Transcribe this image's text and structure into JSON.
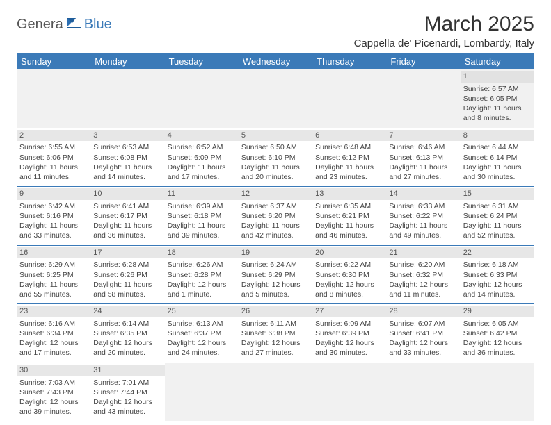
{
  "logo": {
    "part1": "Genera",
    "part2": "Blue"
  },
  "title": "March 2025",
  "location": "Cappella de' Picenardi, Lombardy, Italy",
  "colors": {
    "header_bg": "#3b7ab8",
    "header_text": "#ffffff",
    "border": "#3b7ab8",
    "daynum_bg": "#e7e7e7",
    "empty_bg": "#f1f1f1"
  },
  "weekdays": [
    "Sunday",
    "Monday",
    "Tuesday",
    "Wednesday",
    "Thursday",
    "Friday",
    "Saturday"
  ],
  "weeks": [
    [
      null,
      null,
      null,
      null,
      null,
      null,
      {
        "n": "1",
        "sr": "Sunrise: 6:57 AM",
        "ss": "Sunset: 6:05 PM",
        "d1": "Daylight: 11 hours",
        "d2": "and 8 minutes."
      }
    ],
    [
      {
        "n": "2",
        "sr": "Sunrise: 6:55 AM",
        "ss": "Sunset: 6:06 PM",
        "d1": "Daylight: 11 hours",
        "d2": "and 11 minutes."
      },
      {
        "n": "3",
        "sr": "Sunrise: 6:53 AM",
        "ss": "Sunset: 6:08 PM",
        "d1": "Daylight: 11 hours",
        "d2": "and 14 minutes."
      },
      {
        "n": "4",
        "sr": "Sunrise: 6:52 AM",
        "ss": "Sunset: 6:09 PM",
        "d1": "Daylight: 11 hours",
        "d2": "and 17 minutes."
      },
      {
        "n": "5",
        "sr": "Sunrise: 6:50 AM",
        "ss": "Sunset: 6:10 PM",
        "d1": "Daylight: 11 hours",
        "d2": "and 20 minutes."
      },
      {
        "n": "6",
        "sr": "Sunrise: 6:48 AM",
        "ss": "Sunset: 6:12 PM",
        "d1": "Daylight: 11 hours",
        "d2": "and 23 minutes."
      },
      {
        "n": "7",
        "sr": "Sunrise: 6:46 AM",
        "ss": "Sunset: 6:13 PM",
        "d1": "Daylight: 11 hours",
        "d2": "and 27 minutes."
      },
      {
        "n": "8",
        "sr": "Sunrise: 6:44 AM",
        "ss": "Sunset: 6:14 PM",
        "d1": "Daylight: 11 hours",
        "d2": "and 30 minutes."
      }
    ],
    [
      {
        "n": "9",
        "sr": "Sunrise: 6:42 AM",
        "ss": "Sunset: 6:16 PM",
        "d1": "Daylight: 11 hours",
        "d2": "and 33 minutes."
      },
      {
        "n": "10",
        "sr": "Sunrise: 6:41 AM",
        "ss": "Sunset: 6:17 PM",
        "d1": "Daylight: 11 hours",
        "d2": "and 36 minutes."
      },
      {
        "n": "11",
        "sr": "Sunrise: 6:39 AM",
        "ss": "Sunset: 6:18 PM",
        "d1": "Daylight: 11 hours",
        "d2": "and 39 minutes."
      },
      {
        "n": "12",
        "sr": "Sunrise: 6:37 AM",
        "ss": "Sunset: 6:20 PM",
        "d1": "Daylight: 11 hours",
        "d2": "and 42 minutes."
      },
      {
        "n": "13",
        "sr": "Sunrise: 6:35 AM",
        "ss": "Sunset: 6:21 PM",
        "d1": "Daylight: 11 hours",
        "d2": "and 46 minutes."
      },
      {
        "n": "14",
        "sr": "Sunrise: 6:33 AM",
        "ss": "Sunset: 6:22 PM",
        "d1": "Daylight: 11 hours",
        "d2": "and 49 minutes."
      },
      {
        "n": "15",
        "sr": "Sunrise: 6:31 AM",
        "ss": "Sunset: 6:24 PM",
        "d1": "Daylight: 11 hours",
        "d2": "and 52 minutes."
      }
    ],
    [
      {
        "n": "16",
        "sr": "Sunrise: 6:29 AM",
        "ss": "Sunset: 6:25 PM",
        "d1": "Daylight: 11 hours",
        "d2": "and 55 minutes."
      },
      {
        "n": "17",
        "sr": "Sunrise: 6:28 AM",
        "ss": "Sunset: 6:26 PM",
        "d1": "Daylight: 11 hours",
        "d2": "and 58 minutes."
      },
      {
        "n": "18",
        "sr": "Sunrise: 6:26 AM",
        "ss": "Sunset: 6:28 PM",
        "d1": "Daylight: 12 hours",
        "d2": "and 1 minute."
      },
      {
        "n": "19",
        "sr": "Sunrise: 6:24 AM",
        "ss": "Sunset: 6:29 PM",
        "d1": "Daylight: 12 hours",
        "d2": "and 5 minutes."
      },
      {
        "n": "20",
        "sr": "Sunrise: 6:22 AM",
        "ss": "Sunset: 6:30 PM",
        "d1": "Daylight: 12 hours",
        "d2": "and 8 minutes."
      },
      {
        "n": "21",
        "sr": "Sunrise: 6:20 AM",
        "ss": "Sunset: 6:32 PM",
        "d1": "Daylight: 12 hours",
        "d2": "and 11 minutes."
      },
      {
        "n": "22",
        "sr": "Sunrise: 6:18 AM",
        "ss": "Sunset: 6:33 PM",
        "d1": "Daylight: 12 hours",
        "d2": "and 14 minutes."
      }
    ],
    [
      {
        "n": "23",
        "sr": "Sunrise: 6:16 AM",
        "ss": "Sunset: 6:34 PM",
        "d1": "Daylight: 12 hours",
        "d2": "and 17 minutes."
      },
      {
        "n": "24",
        "sr": "Sunrise: 6:14 AM",
        "ss": "Sunset: 6:35 PM",
        "d1": "Daylight: 12 hours",
        "d2": "and 20 minutes."
      },
      {
        "n": "25",
        "sr": "Sunrise: 6:13 AM",
        "ss": "Sunset: 6:37 PM",
        "d1": "Daylight: 12 hours",
        "d2": "and 24 minutes."
      },
      {
        "n": "26",
        "sr": "Sunrise: 6:11 AM",
        "ss": "Sunset: 6:38 PM",
        "d1": "Daylight: 12 hours",
        "d2": "and 27 minutes."
      },
      {
        "n": "27",
        "sr": "Sunrise: 6:09 AM",
        "ss": "Sunset: 6:39 PM",
        "d1": "Daylight: 12 hours",
        "d2": "and 30 minutes."
      },
      {
        "n": "28",
        "sr": "Sunrise: 6:07 AM",
        "ss": "Sunset: 6:41 PM",
        "d1": "Daylight: 12 hours",
        "d2": "and 33 minutes."
      },
      {
        "n": "29",
        "sr": "Sunrise: 6:05 AM",
        "ss": "Sunset: 6:42 PM",
        "d1": "Daylight: 12 hours",
        "d2": "and 36 minutes."
      }
    ],
    [
      {
        "n": "30",
        "sr": "Sunrise: 7:03 AM",
        "ss": "Sunset: 7:43 PM",
        "d1": "Daylight: 12 hours",
        "d2": "and 39 minutes."
      },
      {
        "n": "31",
        "sr": "Sunrise: 7:01 AM",
        "ss": "Sunset: 7:44 PM",
        "d1": "Daylight: 12 hours",
        "d2": "and 43 minutes."
      },
      null,
      null,
      null,
      null,
      null
    ]
  ]
}
